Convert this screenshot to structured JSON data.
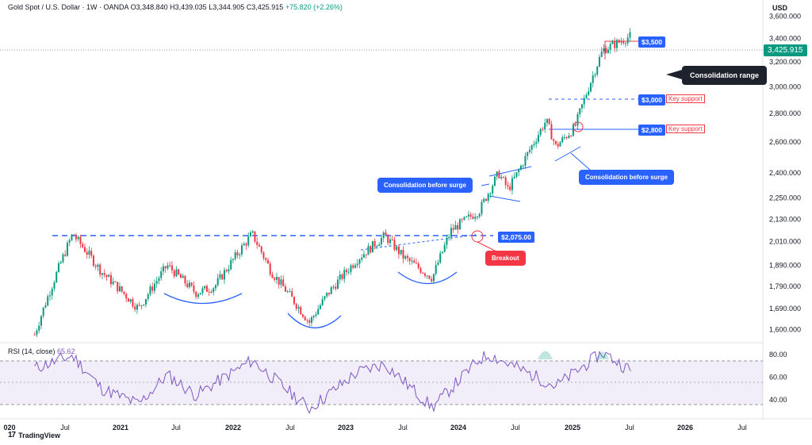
{
  "header": {
    "symbol": "Gold Spot / U.S. Dollar · 1W · OANDA",
    "open": "O3,348.840",
    "high": "H3,439.035",
    "low": "L3,344.905",
    "close": "C3,425.915",
    "change": "+75.820 (+2.26%)"
  },
  "currency": "USD",
  "last_price": "3,425.915",
  "price_axis": [
    "3,600.000",
    "3,400.000",
    "3,200.000",
    "3,000.000",
    "2,800.000",
    "2,600.000",
    "2,400.000",
    "2,250.000",
    "2,130.000",
    "2,010.000",
    "1,890.000",
    "1,790.000",
    "1,690.000",
    "1,600.000"
  ],
  "rsi": {
    "label": "RSI (14, close)",
    "value": "65.62",
    "axis": [
      "80.00",
      "60.00",
      "40.00"
    ]
  },
  "time_axis": [
    "020",
    "Jul",
    "2021",
    "Jul",
    "2022",
    "Jul",
    "2023",
    "Jul",
    "2024",
    "Jul",
    "2025",
    "Jul",
    "2026",
    "Jul"
  ],
  "annotations": {
    "p3500": "$3,500",
    "p3000": "$3,000",
    "p2800": "$2,800",
    "p2075": "$2,075.00",
    "key_support_1": "Key support",
    "key_support_2": "Key support",
    "consolidation_range": "Consolidation range",
    "consolidation_before_surge_1": "Consolidation before surge",
    "consolidation_before_surge_2": "Consolidation before surge",
    "breakout": "Breakout"
  },
  "branding": "TradingView",
  "colors": {
    "up": "#089981",
    "down": "#f23645",
    "accent": "#2962ff",
    "rsi": "#7e57c2"
  },
  "chart_data": {
    "type": "line",
    "title": "Gold Spot / U.S. Dollar · 1W · OANDA",
    "xlabel": "",
    "ylabel": "USD",
    "x": [
      "2020-04",
      "2020-08",
      "2020-11",
      "2021-03",
      "2021-06",
      "2021-09",
      "2021-11",
      "2022-03",
      "2022-05",
      "2022-09",
      "2022-11",
      "2023-02",
      "2023-05",
      "2023-07",
      "2023-10",
      "2023-12",
      "2024-03",
      "2024-05",
      "2024-06",
      "2024-07",
      "2024-10",
      "2024-11",
      "2025-01",
      "2025-04",
      "2025-06",
      "2025-07"
    ],
    "series": [
      {
        "values": [
          1580,
          2050,
          1860,
          1690,
          1890,
          1760,
          1790,
          2050,
          1860,
          1630,
          1760,
          1920,
          2040,
          1930,
          1830,
          2070,
          2180,
          2400,
          2300,
          2400,
          2750,
          2570,
          2700,
          3300,
          3380,
          3426
        ]
      }
    ],
    "ylim": [
      1560,
      3680
    ],
    "levels": [
      3500,
      3000,
      2800,
      2075
    ],
    "rsi": {
      "x": [
        "2020-04",
        "2020-08",
        "2020-11",
        "2021-03",
        "2021-06",
        "2021-09",
        "2022-03",
        "2022-09",
        "2023-02",
        "2023-05",
        "2023-10",
        "2024-03",
        "2024-04",
        "2024-11",
        "2025-04",
        "2025-07"
      ],
      "values": [
        68,
        79,
        50,
        36,
        62,
        44,
        75,
        32,
        64,
        72,
        33,
        76,
        80,
        52,
        82,
        65.62
      ],
      "ylim": [
        25,
        90
      ]
    }
  }
}
